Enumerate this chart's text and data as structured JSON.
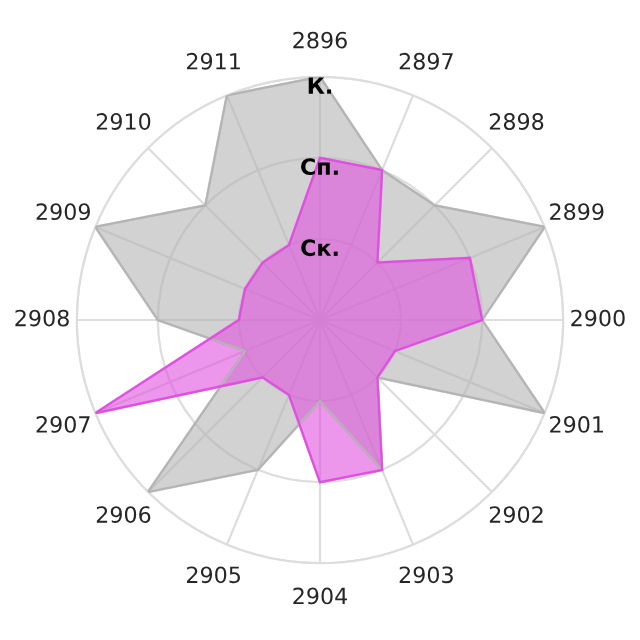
{
  "chart_data": {
    "type": "radar",
    "categories": [
      "2896",
      "2897",
      "2898",
      "2899",
      "2900",
      "2901",
      "2902",
      "2903",
      "2904",
      "2905",
      "2906",
      "2907",
      "2908",
      "2909",
      "2910",
      "2911"
    ],
    "ylim": [
      0,
      3
    ],
    "yticks": [
      {
        "value": 1,
        "label": "Ск."
      },
      {
        "value": 2,
        "label": "Сп."
      },
      {
        "value": 3,
        "label": "К."
      }
    ],
    "grid": true,
    "series": [
      {
        "color": "#b4b4b4",
        "values": [
          3,
          2,
          2,
          3,
          2,
          3,
          1,
          2,
          1,
          2,
          3,
          1,
          2,
          3,
          2,
          3
        ]
      },
      {
        "color": "#e050e0",
        "values": [
          2,
          2,
          1,
          2,
          2,
          1,
          1,
          2,
          2,
          1,
          1,
          3,
          1,
          1,
          1,
          1
        ]
      }
    ]
  }
}
